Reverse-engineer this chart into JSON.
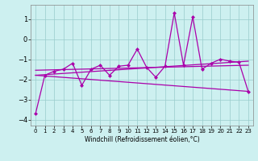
{
  "xlabel": "Windchill (Refroidissement éolien,°C)",
  "bg_color": "#cdf0f0",
  "grid_color": "#99cccc",
  "line_color": "#aa00aa",
  "xlim": [
    -0.5,
    23.5
  ],
  "ylim": [
    -4.3,
    1.7
  ],
  "xticks": [
    0,
    1,
    2,
    3,
    4,
    5,
    6,
    7,
    8,
    9,
    10,
    11,
    12,
    13,
    14,
    15,
    16,
    17,
    18,
    19,
    20,
    21,
    22,
    23
  ],
  "yticks": [
    -4,
    -3,
    -2,
    -1,
    0,
    1
  ],
  "series1": [
    [
      0,
      -3.7
    ],
    [
      1,
      -1.8
    ],
    [
      2,
      -1.6
    ],
    [
      3,
      -1.5
    ],
    [
      4,
      -1.2
    ],
    [
      5,
      -2.3
    ],
    [
      6,
      -1.5
    ],
    [
      7,
      -1.3
    ],
    [
      8,
      -1.8
    ],
    [
      9,
      -1.35
    ],
    [
      10,
      -1.3
    ],
    [
      11,
      -0.5
    ],
    [
      12,
      -1.4
    ],
    [
      13,
      -1.9
    ],
    [
      14,
      -1.35
    ],
    [
      15,
      1.3
    ],
    [
      16,
      -1.3
    ],
    [
      17,
      1.1
    ],
    [
      18,
      -1.5
    ],
    [
      19,
      -1.2
    ],
    [
      20,
      -1.0
    ],
    [
      21,
      -1.1
    ],
    [
      22,
      -1.15
    ],
    [
      23,
      -2.6
    ]
  ],
  "series2_linear_upper": [
    [
      0,
      -1.8
    ],
    [
      23,
      -1.1
    ]
  ],
  "series3_linear_lower": [
    [
      0,
      -1.8
    ],
    [
      23,
      -2.6
    ]
  ],
  "series4_flat": [
    [
      0,
      -1.55
    ],
    [
      23,
      -1.3
    ]
  ]
}
